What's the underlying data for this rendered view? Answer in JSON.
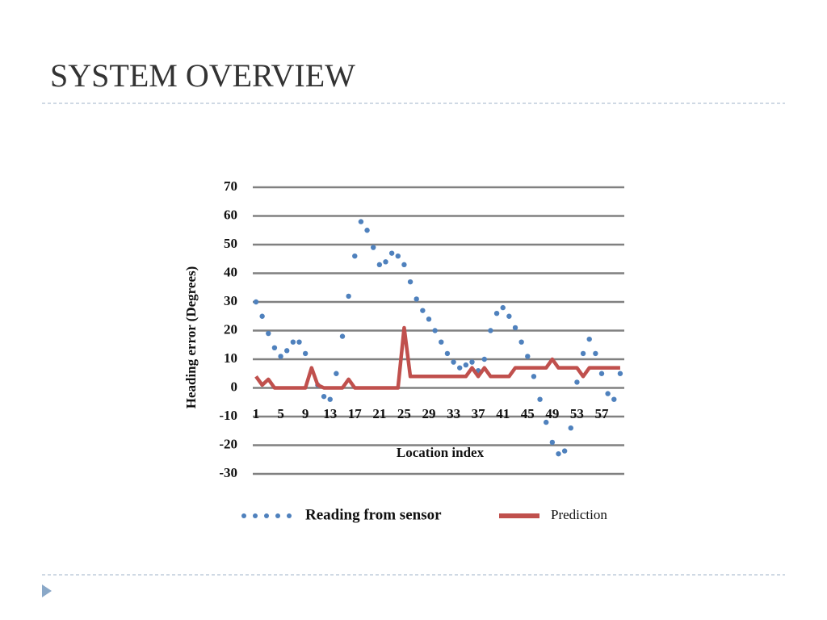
{
  "header": {
    "title": "SYSTEM OVERVIEW"
  },
  "chart_data": {
    "type": "line",
    "ylabel": "Heading error (Degrees)",
    "xlabel": "Location index",
    "categories": [
      "1",
      null,
      null,
      null,
      "5",
      null,
      null,
      null,
      "9",
      null,
      null,
      null,
      "13",
      null,
      null,
      null,
      "17",
      null,
      null,
      null,
      "21",
      null,
      null,
      null,
      "25",
      null,
      null,
      null,
      "29",
      null,
      null,
      null,
      "33",
      null,
      null,
      null,
      "37",
      null,
      null,
      null,
      "41",
      null,
      null,
      null,
      "45",
      null,
      null,
      null,
      "49",
      null,
      null,
      null,
      "53",
      null,
      null,
      null,
      "57",
      null,
      null,
      null
    ],
    "series": [
      {
        "name": "Reading from sensor",
        "color": "#4f81bd",
        "style": "dotted",
        "values": [
          30,
          25,
          19,
          14,
          11,
          13,
          16,
          16,
          12,
          6,
          1,
          -3,
          -4,
          5,
          18,
          32,
          46,
          58,
          55,
          49,
          43,
          44,
          47,
          46,
          43,
          37,
          31,
          27,
          24,
          20,
          16,
          12,
          9,
          7,
          8,
          9,
          6,
          10,
          20,
          26,
          28,
          25,
          21,
          16,
          11,
          4,
          -4,
          -12,
          -19,
          -23,
          -22,
          -14,
          2,
          12,
          17,
          12,
          5,
          -2,
          -4,
          5
        ]
      },
      {
        "name": "Prediction",
        "color": "#c0504d",
        "style": "solid",
        "values": [
          4,
          1,
          3,
          0,
          0,
          0,
          0,
          0,
          0,
          7,
          1,
          0,
          0,
          0,
          0,
          3,
          0,
          0,
          0,
          0,
          0,
          0,
          0,
          0,
          21,
          4,
          4,
          4,
          4,
          4,
          4,
          4,
          4,
          4,
          4,
          7,
          4,
          7,
          4,
          4,
          4,
          4,
          7,
          7,
          7,
          7,
          7,
          7,
          10,
          7,
          7,
          7,
          7,
          4,
          7,
          7,
          7,
          7,
          7,
          7
        ]
      }
    ],
    "ylim": [
      -30,
      70
    ],
    "yticks": [
      -30,
      -20,
      -10,
      0,
      10,
      20,
      30,
      40,
      50,
      60,
      70
    ],
    "grid": true,
    "legend": "bottom"
  }
}
